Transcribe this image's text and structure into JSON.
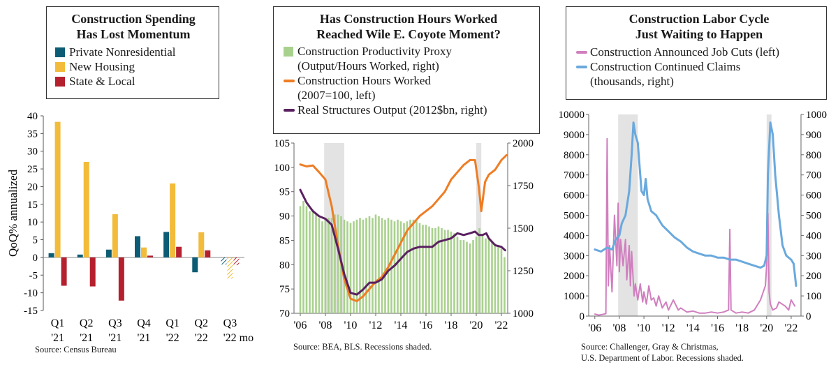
{
  "colors": {
    "nonres": "#0d5c75",
    "housing": "#f2bb3a",
    "state": "#b5202e",
    "productivity": "#a9d18e",
    "hours": "#ee7d24",
    "output": "#5a2160",
    "jobcuts": "#d07fbf",
    "claims": "#6aa9dd",
    "recession": "#e3e3e3"
  },
  "panel1": {
    "title_line1": "Construction Spending",
    "title_line2": "Has Lost Momentum",
    "ylabel": "QoQ% annualized",
    "source": "Source: Census Bureau"
  },
  "panel2": {
    "title_line1": "Has Construction Hours Worked",
    "title_line2": "Reached Wile E. Coyote Moment?",
    "legend_productivity_1": "Construction Productivity Proxy",
    "legend_productivity_2": "(Output/Hours Worked, right)",
    "legend_hours_1": "Construction Hours Worked",
    "legend_hours_2": "(2007=100, left)",
    "legend_output": "Real Structures Output (2012$bn, right)",
    "source": "Source: BEA, BLS. Recessions shaded."
  },
  "panel3": {
    "title_line1": "Construction Labor Cycle",
    "title_line2": "Just Waiting to Happen",
    "legend_jobcuts": "Construction Announced Job Cuts (left)",
    "legend_claims_1": "Construction Continued Claims",
    "legend_claims_2": "(thousands, right)",
    "source_1": "Source: Challenger, Gray & Christmas,",
    "source_2": "U.S. Department of Labor. Recessions shaded."
  },
  "chart_data": [
    {
      "type": "bar",
      "title": "Construction Spending Has Lost Momentum",
      "ylabel": "QoQ% annualized",
      "ylim": [
        -15,
        40
      ],
      "yticks": [
        40,
        35,
        30,
        25,
        20,
        15,
        10,
        5,
        0,
        -5,
        -10,
        -15
      ],
      "categories": [
        "Q1 '21",
        "Q2 '21",
        "Q3 '21",
        "Q4 '21",
        "Q1 '22",
        "Q2 '22",
        "Q3 '22 mo"
      ],
      "category_line1": [
        "Q1",
        "Q2",
        "Q3",
        "Q4",
        "Q1",
        "Q2",
        "Q3"
      ],
      "category_line2": [
        "'21",
        "'21",
        "'21",
        "'21",
        "'22",
        "'22",
        "'22 mo"
      ],
      "series": [
        {
          "name": "Private Nonresidential",
          "values": [
            1.2,
            0.8,
            2.2,
            6.0,
            7.2,
            -4.2,
            -2.0
          ]
        },
        {
          "name": "New Housing",
          "values": [
            38.3,
            27.0,
            12.2,
            2.8,
            20.9,
            7.1,
            -6.0
          ]
        },
        {
          "name": "State & Local",
          "values": [
            -8.0,
            -8.2,
            -12.2,
            0.5,
            3.0,
            2.0,
            -2.2
          ]
        }
      ],
      "hatched_category": "Q3 '22 mo",
      "grid": false,
      "legend_position": "top"
    },
    {
      "type": "line",
      "title": "Has Construction Hours Worked Reached Wile E. Coyote Moment?",
      "x_range": [
        2005.5,
        2022.5
      ],
      "xtick_labels": [
        "'06",
        "'08",
        "'10",
        "'12",
        "'14",
        "'16",
        "'18",
        "'20",
        "'22"
      ],
      "xtick_years": [
        2006,
        2008,
        2010,
        2012,
        2014,
        2016,
        2018,
        2020,
        2022
      ],
      "ylim_left": [
        70,
        105
      ],
      "yticks_left": [
        105,
        100,
        95,
        90,
        85,
        80,
        75,
        70
      ],
      "ylim_right": [
        1000,
        2000
      ],
      "yticks_right": [
        2000,
        1750,
        1500,
        1250,
        1000
      ],
      "recessions": [
        [
          2007.9,
          2009.5
        ],
        [
          2020.0,
          2020.4
        ]
      ],
      "series": [
        {
          "name": "Construction Productivity Proxy (Output/Hours Worked, right)",
          "axis": "right",
          "style": "bar",
          "x": [
            2006.0,
            2006.25,
            2006.5,
            2006.75,
            2007.0,
            2007.25,
            2007.5,
            2007.75,
            2008.0,
            2008.25,
            2008.5,
            2008.75,
            2009.0,
            2009.25,
            2009.5,
            2009.75,
            2010.0,
            2010.25,
            2010.5,
            2010.75,
            2011.0,
            2011.25,
            2011.5,
            2011.75,
            2012.0,
            2012.25,
            2012.5,
            2012.75,
            2013.0,
            2013.25,
            2013.5,
            2013.75,
            2014.0,
            2014.25,
            2014.5,
            2014.75,
            2015.0,
            2015.25,
            2015.5,
            2015.75,
            2016.0,
            2016.25,
            2016.5,
            2016.75,
            2017.0,
            2017.25,
            2017.5,
            2017.75,
            2018.0,
            2018.25,
            2018.5,
            2018.75,
            2019.0,
            2019.25,
            2019.5,
            2019.75,
            2020.0,
            2020.25,
            2020.5,
            2020.75,
            2021.0,
            2021.25,
            2021.5,
            2021.75,
            2022.0,
            2022.25
          ],
          "values": [
            1630,
            1660,
            1630,
            1600,
            1610,
            1590,
            1560,
            1540,
            1550,
            1560,
            1560,
            1580,
            1580,
            1570,
            1550,
            1540,
            1530,
            1540,
            1550,
            1560,
            1550,
            1560,
            1570,
            1560,
            1580,
            1570,
            1560,
            1550,
            1560,
            1550,
            1540,
            1550,
            1540,
            1530,
            1540,
            1550,
            1550,
            1540,
            1530,
            1520,
            1520,
            1510,
            1500,
            1500,
            1510,
            1500,
            1490,
            1490,
            1480,
            1470,
            1450,
            1430,
            1430,
            1420,
            1410,
            1430,
            1450,
            1500,
            1460,
            1440,
            1440,
            1420,
            1410,
            1400,
            1380,
            1330
          ]
        },
        {
          "name": "Construction Hours Worked (2007=100, left)",
          "axis": "left",
          "x": [
            2006.0,
            2006.5,
            2007.0,
            2007.5,
            2008.0,
            2008.5,
            2009.0,
            2009.5,
            2010.0,
            2010.5,
            2011.0,
            2011.5,
            2012.0,
            2012.5,
            2013.0,
            2013.5,
            2014.0,
            2014.5,
            2015.0,
            2015.5,
            2016.0,
            2016.5,
            2017.0,
            2017.5,
            2018.0,
            2018.5,
            2019.0,
            2019.5,
            2019.9,
            2020.2,
            2020.4,
            2020.7,
            2021.0,
            2021.5,
            2022.0,
            2022.4
          ],
          "values": [
            100.6,
            100.2,
            100.4,
            99.0,
            97.5,
            92.0,
            84.0,
            77.0,
            73.0,
            72.5,
            73.5,
            75.0,
            76.5,
            77.5,
            79.5,
            82.0,
            84.5,
            87.0,
            88.5,
            90.0,
            91.0,
            92.0,
            93.5,
            95.0,
            97.5,
            99.0,
            100.5,
            101.5,
            101.5,
            96.0,
            91.0,
            97.0,
            98.5,
            99.5,
            101.5,
            102.5
          ]
        },
        {
          "name": "Real Structures Output (2012$bn, right)",
          "axis": "right",
          "x": [
            2006.0,
            2006.5,
            2007.0,
            2007.5,
            2008.0,
            2008.5,
            2009.0,
            2009.5,
            2010.0,
            2010.5,
            2011.0,
            2011.5,
            2012.0,
            2012.5,
            2013.0,
            2013.5,
            2014.0,
            2014.5,
            2015.0,
            2015.5,
            2016.0,
            2016.5,
            2017.0,
            2017.5,
            2018.0,
            2018.5,
            2019.0,
            2019.5,
            2019.9,
            2020.2,
            2020.5,
            2020.8,
            2021.0,
            2021.5,
            2022.0,
            2022.3
          ],
          "values": [
            1725,
            1650,
            1600,
            1570,
            1555,
            1520,
            1380,
            1230,
            1120,
            1110,
            1140,
            1180,
            1180,
            1200,
            1250,
            1280,
            1320,
            1360,
            1380,
            1390,
            1390,
            1390,
            1420,
            1430,
            1440,
            1470,
            1460,
            1470,
            1480,
            1460,
            1460,
            1470,
            1440,
            1400,
            1390,
            1370
          ]
        }
      ],
      "grid": false,
      "legend_position": "top"
    },
    {
      "type": "line",
      "title": "Construction Labor Cycle Just Waiting to Happen",
      "x_range": [
        2005.5,
        2022.8
      ],
      "xtick_labels": [
        "'06",
        "'08",
        "'10",
        "'12",
        "'14",
        "'16",
        "'18",
        "'20",
        "'22"
      ],
      "xtick_years": [
        2006,
        2008,
        2010,
        2012,
        2014,
        2016,
        2018,
        2020,
        2022
      ],
      "ylim_left": [
        0,
        10000
      ],
      "yticks_left": [
        10000,
        9000,
        8000,
        7000,
        6000,
        5000,
        4000,
        3000,
        2000,
        1000,
        0
      ],
      "ylim_right": [
        0,
        1000
      ],
      "yticks_right": [
        1000,
        900,
        800,
        700,
        600,
        500,
        400,
        300,
        200,
        100,
        0
      ],
      "recessions": [
        [
          2007.9,
          2009.5
        ],
        [
          2020.0,
          2020.4
        ]
      ],
      "series": [
        {
          "name": "Construction Announced Job Cuts (left)",
          "axis": "left",
          "x": [
            2006.0,
            2006.3,
            2006.6,
            2006.9,
            2007.0,
            2007.1,
            2007.2,
            2007.4,
            2007.6,
            2007.8,
            2007.9,
            2008.0,
            2008.1,
            2008.3,
            2008.5,
            2008.6,
            2008.8,
            2008.9,
            2009.0,
            2009.2,
            2009.3,
            2009.5,
            2009.7,
            2009.9,
            2010.0,
            2010.2,
            2010.4,
            2010.6,
            2010.8,
            2011.0,
            2011.2,
            2011.5,
            2011.8,
            2012.0,
            2012.4,
            2012.8,
            2013.0,
            2013.5,
            2014.0,
            2014.5,
            2015.0,
            2015.5,
            2016.0,
            2016.5,
            2016.9,
            2017.0,
            2017.1,
            2017.5,
            2018.0,
            2018.5,
            2019.0,
            2019.5,
            2019.9,
            2020.0,
            2020.1,
            2020.2,
            2020.3,
            2020.5,
            2020.8,
            2021.0,
            2021.5,
            2021.8,
            2022.0,
            2022.3
          ],
          "values": [
            100,
            50,
            80,
            120,
            8800,
            1500,
            3500,
            1200,
            5000,
            2500,
            5600,
            2200,
            3800,
            2500,
            3800,
            1800,
            3500,
            1500,
            3200,
            1000,
            1600,
            800,
            1600,
            700,
            1200,
            600,
            1500,
            800,
            900,
            500,
            1000,
            400,
            700,
            300,
            800,
            300,
            400,
            200,
            250,
            150,
            150,
            200,
            150,
            200,
            300,
            4300,
            300,
            150,
            200,
            150,
            300,
            800,
            1500,
            2500,
            5100,
            1200,
            600,
            300,
            400,
            700,
            500,
            300,
            800,
            500
          ]
        },
        {
          "name": "Construction Continued Claims (thousands, right)",
          "axis": "right",
          "x": [
            2006.0,
            2006.5,
            2007.0,
            2007.4,
            2007.7,
            2008.0,
            2008.2,
            2008.5,
            2008.8,
            2009.0,
            2009.15,
            2009.3,
            2009.5,
            2009.8,
            2010.0,
            2010.15,
            2010.3,
            2010.6,
            2011.0,
            2011.5,
            2012.0,
            2012.5,
            2013.0,
            2013.5,
            2014.0,
            2014.5,
            2015.0,
            2015.5,
            2016.0,
            2016.5,
            2017.0,
            2017.5,
            2018.0,
            2018.5,
            2019.0,
            2019.5,
            2019.8,
            2020.0,
            2020.1,
            2020.3,
            2020.5,
            2020.7,
            2021.0,
            2021.3,
            2021.6,
            2022.0,
            2022.2,
            2022.4
          ],
          "values": [
            330,
            320,
            340,
            330,
            380,
            400,
            460,
            500,
            620,
            800,
            960,
            900,
            860,
            620,
            600,
            680,
            580,
            520,
            500,
            450,
            420,
            390,
            370,
            340,
            320,
            310,
            300,
            300,
            290,
            290,
            280,
            280,
            270,
            260,
            250,
            240,
            250,
            300,
            700,
            960,
            900,
            700,
            500,
            350,
            300,
            280,
            260,
            150
          ]
        }
      ],
      "grid": false,
      "legend_position": "top"
    }
  ]
}
